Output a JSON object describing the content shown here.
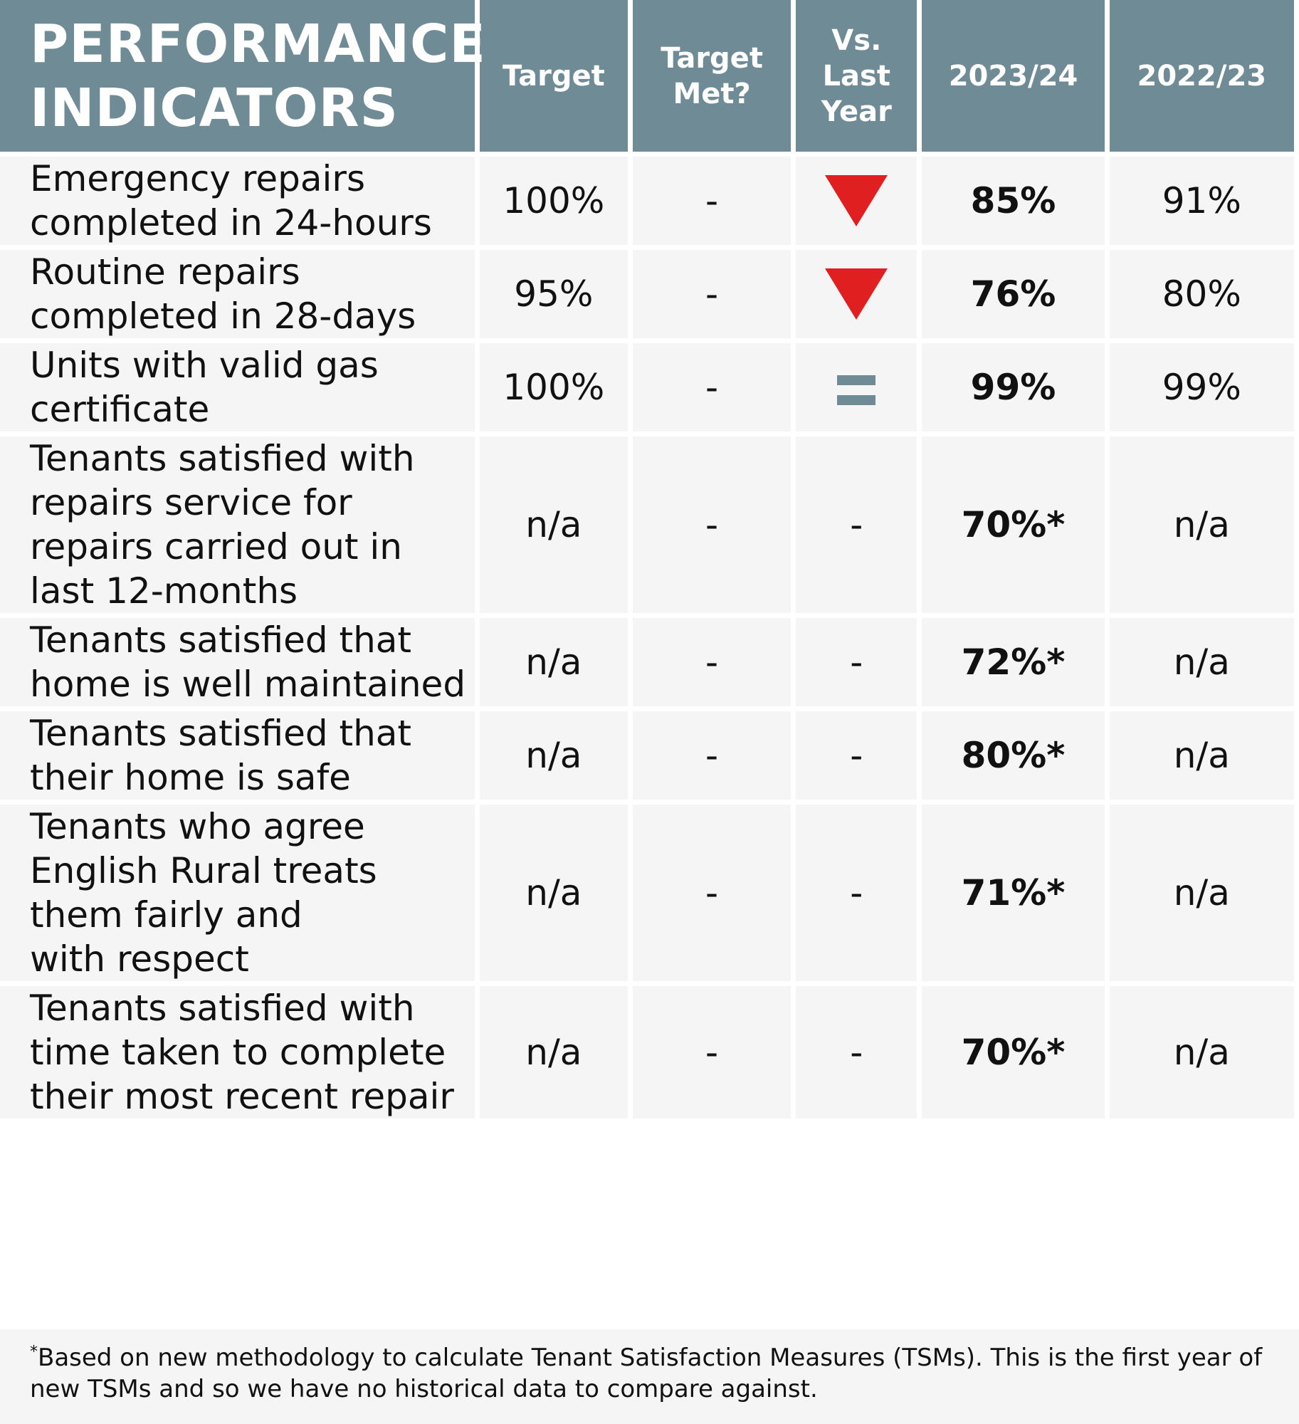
{
  "header": {
    "title_line1": "PERFORMANCE",
    "title_line2": "INDICATORS",
    "col_target": "Target",
    "col_target_met_1": "Target",
    "col_target_met_2": "Met?",
    "col_vs_1": "Vs.",
    "col_vs_2": "Last",
    "col_vs_3": "Year",
    "col_current": "2023/24",
    "col_previous": "2022/23"
  },
  "colors": {
    "header_bg": "#6f8b95",
    "row_bg": "#f5f5f5",
    "down_arrow": "#e02020",
    "equal_icon": "#6f8b95"
  },
  "rows": [
    {
      "lines": [
        "Emergency repairs",
        "completed in 24-hours"
      ],
      "target": "100%",
      "target_met": "-",
      "trend": "down",
      "trend_text": "",
      "current": "85%",
      "previous": "91%"
    },
    {
      "lines": [
        "Routine repairs",
        "completed in 28-days"
      ],
      "target": "95%",
      "target_met": "-",
      "trend": "down",
      "trend_text": "",
      "current": "76%",
      "previous": "80%"
    },
    {
      "lines": [
        "Units with valid gas",
        "certificate"
      ],
      "target": "100%",
      "target_met": "-",
      "trend": "equal",
      "trend_text": "",
      "current": "99%",
      "previous": "99%"
    },
    {
      "lines": [
        "Tenants satisfied with",
        "repairs service for",
        "repairs carried out in",
        "last 12-months"
      ],
      "target": "n/a",
      "target_met": "-",
      "trend": "none",
      "trend_text": "-",
      "current": "70%*",
      "previous": "n/a"
    },
    {
      "lines": [
        "Tenants satisfied that",
        "home is well maintained"
      ],
      "target": "n/a",
      "target_met": "-",
      "trend": "none",
      "trend_text": "-",
      "current": "72%*",
      "previous": "n/a"
    },
    {
      "lines": [
        "Tenants satisfied that",
        "their home is safe"
      ],
      "target": "n/a",
      "target_met": "-",
      "trend": "none",
      "trend_text": "-",
      "current": "80%*",
      "previous": "n/a"
    },
    {
      "lines": [
        "Tenants who agree",
        "English Rural treats",
        "them fairly and",
        "with respect"
      ],
      "target": "n/a",
      "target_met": "-",
      "trend": "none",
      "trend_text": "-",
      "current": "71%*",
      "previous": "n/a"
    },
    {
      "lines": [
        "Tenants satisfied with",
        "time taken to complete",
        "their most recent repair"
      ],
      "target": "n/a",
      "target_met": "-",
      "trend": "none",
      "trend_text": "-",
      "current": "70%*",
      "previous": "n/a"
    }
  ],
  "footnote": {
    "marker": "*",
    "text": "Based on new methodology to calculate Tenant Satisfaction Measures (TSMs). This is the first year of new TSMs and so we have no historical data to compare against."
  }
}
